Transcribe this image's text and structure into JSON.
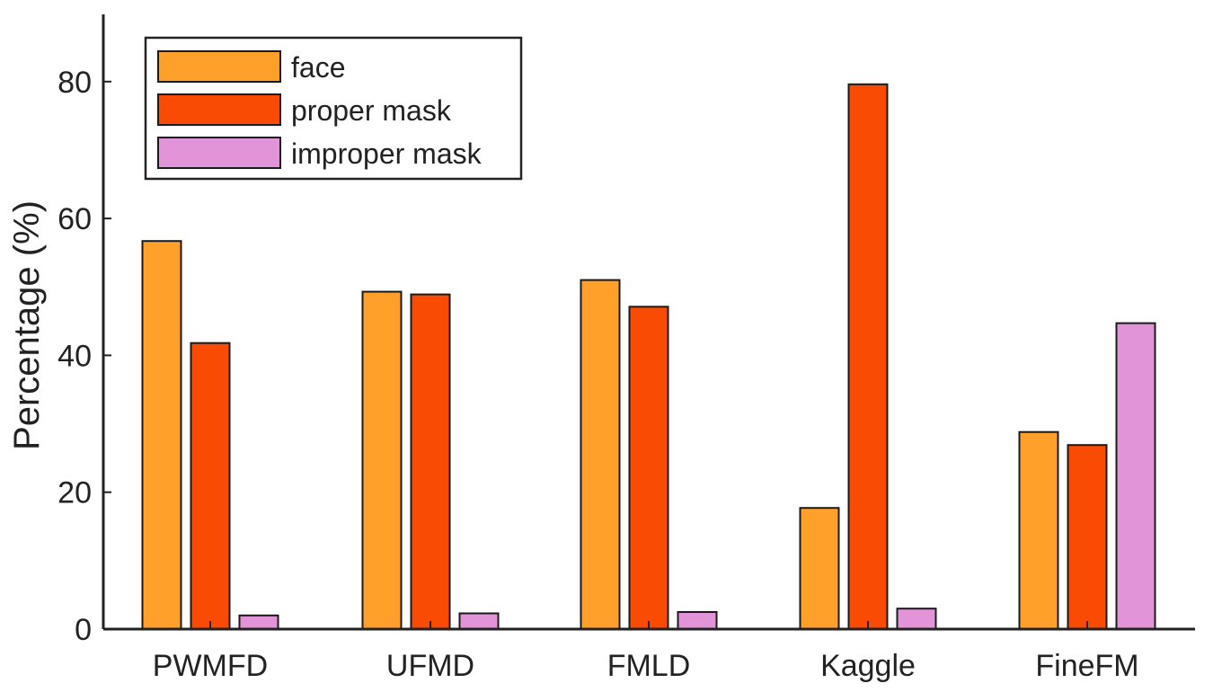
{
  "chart_data": {
    "type": "bar",
    "title": "",
    "xlabel": "",
    "ylabel": "Percentage (%)",
    "ylim": [
      0,
      90
    ],
    "yticks": [
      0,
      20,
      40,
      60,
      80
    ],
    "grid": false,
    "legend_position": "top-left",
    "categories": [
      "PWMFD",
      "UFMD",
      "FMLD",
      "Kaggle",
      "FineFM"
    ],
    "series": [
      {
        "name": "face",
        "color": "#FFA02B",
        "values": [
          56.7,
          49.3,
          51.0,
          17.7,
          28.8
        ]
      },
      {
        "name": "proper mask",
        "color": "#FA4B05",
        "values": [
          41.8,
          48.9,
          47.1,
          79.6,
          26.9
        ]
      },
      {
        "name": "improper mask",
        "color": "#E195D8",
        "values": [
          2.0,
          2.3,
          2.5,
          3.0,
          44.7
        ]
      }
    ]
  }
}
